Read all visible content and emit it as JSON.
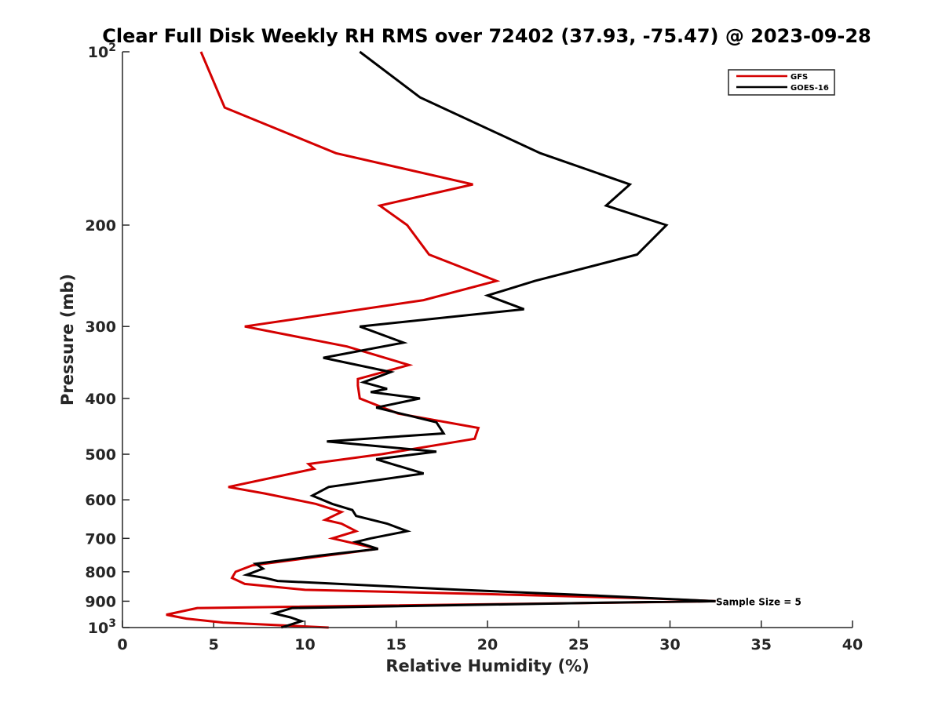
{
  "chart_data": {
    "type": "line",
    "title": "Clear Full Disk Weekly RH RMS over 72402 (37.93, -75.47) @ 2023-09-28",
    "xlabel": "Relative Humidity (%)",
    "ylabel": "Pressure (mb)",
    "xlim": [
      0,
      40
    ],
    "ylim": [
      100,
      1000
    ],
    "yscale": "log",
    "y_reversed": true,
    "x_ticks": [
      0,
      5,
      10,
      15,
      20,
      25,
      30,
      35,
      40
    ],
    "x_tick_labels": [
      "0",
      "5",
      "10",
      "15",
      "20",
      "25",
      "30",
      "35",
      "40"
    ],
    "y_ticks": [
      100,
      200,
      300,
      400,
      500,
      600,
      700,
      800,
      900,
      1000
    ],
    "y_tick_labels": [
      {
        "base": "10",
        "sup": "2"
      },
      {
        "base": "200"
      },
      {
        "base": "300"
      },
      {
        "base": "400"
      },
      {
        "base": "500"
      },
      {
        "base": "600"
      },
      {
        "base": "700"
      },
      {
        "base": "800"
      },
      {
        "base": "900"
      },
      {
        "base": "10",
        "sup": "3"
      }
    ],
    "legend_position": "top-right",
    "series": [
      {
        "name": "GFS",
        "color": "#d40000",
        "points": [
          [
            4.3,
            100
          ],
          [
            5.6,
            125
          ],
          [
            11.7,
            150
          ],
          [
            19.2,
            170
          ],
          [
            14.1,
            185
          ],
          [
            15.6,
            200
          ],
          [
            16.8,
            225
          ],
          [
            20.5,
            250
          ],
          [
            16.5,
            270
          ],
          [
            6.7,
            300
          ],
          [
            12.3,
            325
          ],
          [
            15.7,
            350
          ],
          [
            13.6,
            365
          ],
          [
            12.9,
            370
          ],
          [
            12.9,
            380
          ],
          [
            13.0,
            400
          ],
          [
            15.1,
            425
          ],
          [
            19.5,
            450
          ],
          [
            19.3,
            470
          ],
          [
            14.2,
            500
          ],
          [
            10.2,
            520
          ],
          [
            10.5,
            530
          ],
          [
            5.8,
            570
          ],
          [
            7.8,
            585
          ],
          [
            10.6,
            610
          ],
          [
            12.0,
            630
          ],
          [
            11.1,
            650
          ],
          [
            12.0,
            660
          ],
          [
            12.8,
            680
          ],
          [
            11.5,
            700
          ],
          [
            14.0,
            730
          ],
          [
            7.1,
            780
          ],
          [
            6.2,
            800
          ],
          [
            6.0,
            820
          ],
          [
            6.7,
            840
          ],
          [
            10.0,
            860
          ],
          [
            20.0,
            875
          ],
          [
            29.0,
            890
          ],
          [
            32.5,
            900
          ],
          [
            27.0,
            905
          ],
          [
            4.1,
            925
          ],
          [
            2.4,
            950
          ],
          [
            3.5,
            965
          ],
          [
            5.5,
            980
          ],
          [
            11.3,
            1000
          ]
        ]
      },
      {
        "name": "GOES-16",
        "color": "#000000",
        "points": [
          [
            13.0,
            100
          ],
          [
            16.3,
            120
          ],
          [
            22.9,
            150
          ],
          [
            27.8,
            170
          ],
          [
            26.5,
            185
          ],
          [
            29.8,
            200
          ],
          [
            28.2,
            225
          ],
          [
            22.6,
            250
          ],
          [
            20.0,
            265
          ],
          [
            22.0,
            280
          ],
          [
            13.0,
            300
          ],
          [
            15.4,
            320
          ],
          [
            11.0,
            340
          ],
          [
            14.7,
            360
          ],
          [
            13.2,
            375
          ],
          [
            14.5,
            385
          ],
          [
            13.6,
            390
          ],
          [
            16.3,
            400
          ],
          [
            13.9,
            415
          ],
          [
            17.2,
            440
          ],
          [
            17.6,
            460
          ],
          [
            11.2,
            475
          ],
          [
            17.2,
            495
          ],
          [
            13.9,
            510
          ],
          [
            16.5,
            540
          ],
          [
            11.3,
            570
          ],
          [
            10.4,
            590
          ],
          [
            11.5,
            610
          ],
          [
            12.6,
            625
          ],
          [
            12.8,
            640
          ],
          [
            14.5,
            660
          ],
          [
            15.6,
            680
          ],
          [
            13.6,
            700
          ],
          [
            12.8,
            710
          ],
          [
            14.0,
            730
          ],
          [
            10.8,
            750
          ],
          [
            7.3,
            775
          ],
          [
            7.7,
            790
          ],
          [
            6.8,
            810
          ],
          [
            7.8,
            820
          ],
          [
            8.5,
            830
          ],
          [
            18.5,
            860
          ],
          [
            26.0,
            880
          ],
          [
            32.5,
            900
          ],
          [
            26.5,
            905
          ],
          [
            9.3,
            925
          ],
          [
            8.3,
            945
          ],
          [
            9.2,
            960
          ],
          [
            9.8,
            975
          ],
          [
            8.7,
            1000
          ]
        ]
      }
    ],
    "annotations": [
      {
        "text": "Sample Size = 5",
        "x": 32.6,
        "y": 900
      }
    ]
  }
}
